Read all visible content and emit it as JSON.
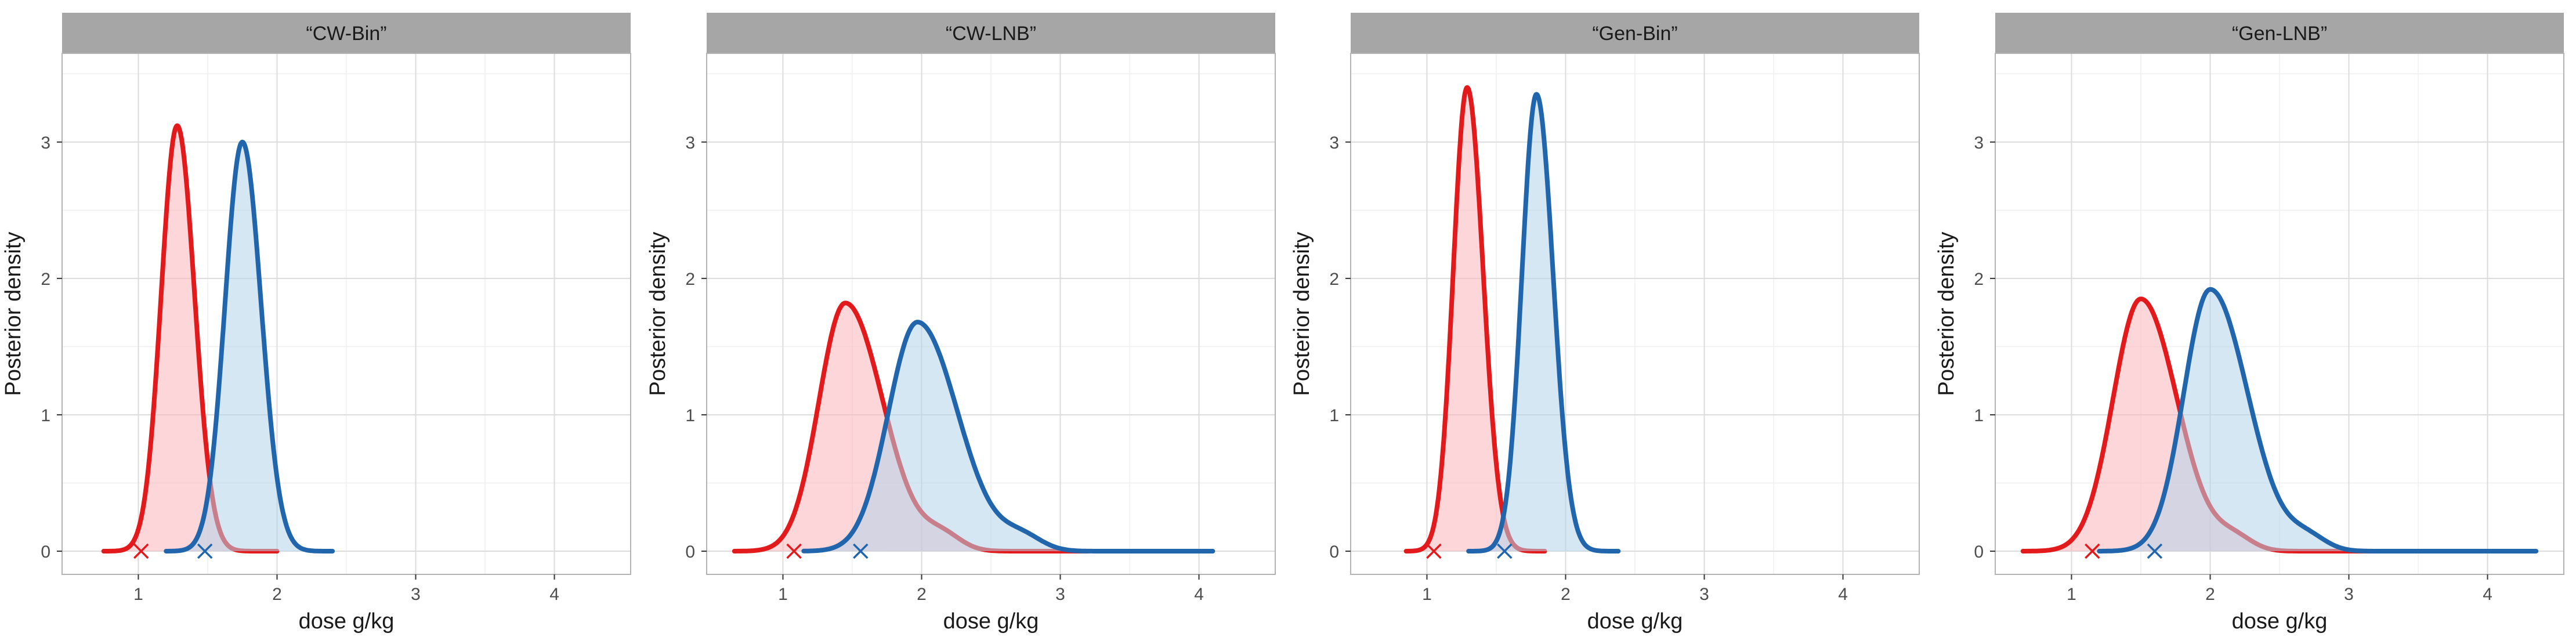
{
  "colors": {
    "red": "#e31a1c",
    "red_fill": "#fbb4b9",
    "blue": "#2166ac",
    "blue_fill": "#b3d4ea",
    "strip_bg": "#a6a6a6",
    "grid_major": "#dcdcdc",
    "grid_minor": "#efefef",
    "panel_border": "#b3b3b3",
    "text": "#1a1a1a",
    "tick_text": "#4d4d4d"
  },
  "chart_data": [
    {
      "type": "area",
      "title": "“CW-Bin”",
      "xlabel": "dose g/kg",
      "ylabel": "Posterior density",
      "xlim": [
        0.45,
        4.55
      ],
      "ylim": [
        -0.17,
        3.65
      ],
      "x_ticks": [
        1,
        2,
        3,
        4
      ],
      "y_ticks": [
        0,
        1,
        2,
        3
      ],
      "grid": true,
      "series": [
        {
          "name": "red",
          "color": "red",
          "peak_x": 1.28,
          "peak_y": 3.12,
          "sd_left": 0.115,
          "sd_right": 0.125,
          "x_range": [
            0.75,
            2.0
          ],
          "tail_bump": 0.0,
          "marker_x": 1.02
        },
        {
          "name": "blue",
          "color": "blue",
          "peak_x": 1.75,
          "peak_y": 3.0,
          "sd_left": 0.125,
          "sd_right": 0.135,
          "x_range": [
            1.2,
            2.4
          ],
          "tail_bump": 0.0,
          "marker_x": 1.48
        }
      ]
    },
    {
      "type": "area",
      "title": "“CW-LNB”",
      "xlabel": "dose g/kg",
      "ylabel": "Posterior density",
      "xlim": [
        0.45,
        4.55
      ],
      "ylim": [
        -0.17,
        3.65
      ],
      "x_ticks": [
        1,
        2,
        3,
        4
      ],
      "y_ticks": [
        0,
        1,
        2,
        3
      ],
      "grid": true,
      "series": [
        {
          "name": "red",
          "color": "red",
          "peak_x": 1.45,
          "peak_y": 1.82,
          "sd_left": 0.19,
          "sd_right": 0.27,
          "x_range": [
            0.65,
            3.2
          ],
          "tail_bump": 0.06,
          "marker_x": 1.08
        },
        {
          "name": "blue",
          "color": "blue",
          "peak_x": 1.97,
          "peak_y": 1.68,
          "sd_left": 0.21,
          "sd_right": 0.29,
          "x_range": [
            1.15,
            4.1
          ],
          "tail_bump": 0.06,
          "marker_x": 1.56
        }
      ]
    },
    {
      "type": "area",
      "title": "“Gen-Bin”",
      "xlabel": "dose g/kg",
      "ylabel": "Posterior density",
      "xlim": [
        0.45,
        4.55
      ],
      "ylim": [
        -0.17,
        3.65
      ],
      "x_ticks": [
        1,
        2,
        3,
        4
      ],
      "y_ticks": [
        0,
        1,
        2,
        3
      ],
      "grid": true,
      "series": [
        {
          "name": "red",
          "color": "red",
          "peak_x": 1.29,
          "peak_y": 3.4,
          "sd_left": 0.1,
          "sd_right": 0.115,
          "x_range": [
            0.85,
            1.85
          ],
          "tail_bump": 0.0,
          "marker_x": 1.05
        },
        {
          "name": "blue",
          "color": "blue",
          "peak_x": 1.79,
          "peak_y": 3.35,
          "sd_left": 0.105,
          "sd_right": 0.12,
          "x_range": [
            1.3,
            2.38
          ],
          "tail_bump": 0.0,
          "marker_x": 1.56
        }
      ]
    },
    {
      "type": "area",
      "title": "“Gen-LNB”",
      "xlabel": "dose g/kg",
      "ylabel": "Posterior density",
      "xlim": [
        0.45,
        4.55
      ],
      "ylim": [
        -0.17,
        3.65
      ],
      "x_ticks": [
        1,
        2,
        3,
        4
      ],
      "y_ticks": [
        0,
        1,
        2,
        3
      ],
      "grid": true,
      "series": [
        {
          "name": "red",
          "color": "red",
          "peak_x": 1.5,
          "peak_y": 1.85,
          "sd_left": 0.2,
          "sd_right": 0.26,
          "x_range": [
            0.65,
            3.2
          ],
          "tail_bump": 0.05,
          "marker_x": 1.15
        },
        {
          "name": "blue",
          "color": "blue",
          "peak_x": 2.0,
          "peak_y": 1.92,
          "sd_left": 0.19,
          "sd_right": 0.27,
          "x_range": [
            1.2,
            4.35
          ],
          "tail_bump": 0.05,
          "marker_x": 1.6
        }
      ]
    }
  ]
}
